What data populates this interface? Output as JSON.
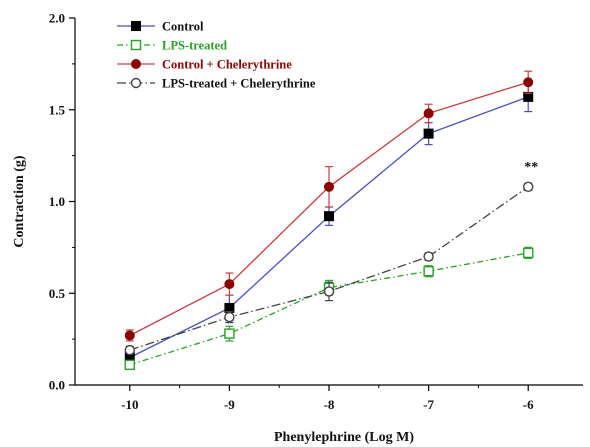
{
  "chart_data": {
    "type": "line",
    "xlabel": "Phenylephrine (Log M)",
    "ylabel": "Contraction (g)",
    "x": [
      -10,
      -9,
      -8,
      -7,
      -6
    ],
    "xticks": [
      "-10",
      "-9",
      "-8",
      "-7",
      "-6"
    ],
    "xlim": [
      -10.55,
      -5.45
    ],
    "ylim": [
      0,
      2
    ],
    "yticks": [
      "0.0",
      "0.5",
      "1.0",
      "1.5",
      "2.0"
    ],
    "grid": false,
    "legend_position": "top-left",
    "series": [
      {
        "name": "Control",
        "values": [
          0.15,
          0.42,
          0.92,
          1.37,
          1.57
        ],
        "errors": [
          0.02,
          0.07,
          0.05,
          0.06,
          0.08
        ],
        "color": "#4a4fc4",
        "marker": "filled-square",
        "marker_color": "#000000",
        "dash": ""
      },
      {
        "name": "LPS-treated",
        "values": [
          0.11,
          0.28,
          0.53,
          0.62,
          0.72
        ],
        "errors": [
          0.02,
          0.04,
          0.04,
          0.03,
          0.03
        ],
        "color": "#2aa02a",
        "marker": "open-square",
        "marker_color": "#2aa02a",
        "dash": "6,3,1.5,3"
      },
      {
        "name": "Control + Chelerythrine",
        "values": [
          0.27,
          0.55,
          1.08,
          1.48,
          1.65
        ],
        "errors": [
          0.03,
          0.06,
          0.11,
          0.05,
          0.06
        ],
        "color": "#c84040",
        "marker": "filled-circle",
        "marker_color": "#8b0000",
        "dash": ""
      },
      {
        "name": "LPS-treated + Chelerythrine",
        "values": [
          0.19,
          0.37,
          0.51,
          0.7,
          1.08
        ],
        "errors": [
          0.02,
          0.03,
          0.05,
          0.02,
          0.02
        ],
        "color": "#444444",
        "marker": "open-circle",
        "marker_color": "#444444",
        "dash": "9,3,1.5,3"
      }
    ],
    "annotations": [
      {
        "text": "**",
        "x": -6,
        "y": 1.08
      }
    ]
  }
}
